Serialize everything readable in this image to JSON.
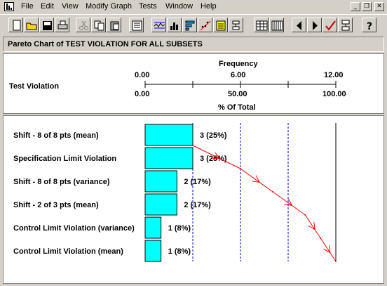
{
  "menu": {
    "items": [
      "File",
      "Edit",
      "View",
      "Modify Graph",
      "Tests",
      "Window",
      "Help"
    ],
    "underline": [
      "F",
      "E",
      "V",
      "M",
      "T",
      "W",
      "H"
    ]
  },
  "window_buttons": [
    "_",
    "❐",
    "✕"
  ],
  "toolbar_icons": [
    "new-file-icon",
    "open-folder-icon",
    "save-disk-icon",
    "print-icon",
    "cut-icon",
    "copy-icon",
    "paste-icon",
    "report-icon",
    "control-chart-icon",
    "histogram-icon",
    "pareto-icon",
    "scatter-icon",
    "capability-icon",
    "runs-icon",
    "spreadsheet-icon",
    "data-table-icon",
    "arrow-left-icon",
    "arrow-right-icon",
    "checkmark-icon",
    "flowchart-icon",
    "help-question-icon"
  ],
  "chart_title": "Pareto Chart of TEST VIOLATION FOR ALL SUBSETS",
  "header": {
    "category_label": "Test Violation",
    "frequency_label": "Frequency",
    "percent_label": "% Of Total",
    "frequency_ticks": [
      "0.00",
      "6.00",
      "12.00"
    ],
    "percent_ticks": [
      "0.00",
      "50.00",
      "100.00"
    ]
  },
  "colors": {
    "bar": "#00ffff",
    "cumulative_line": "#ff0000",
    "gridline": "#0000c0"
  },
  "chart_data": {
    "type": "bar",
    "orientation": "horizontal",
    "categories": [
      "Shift - 8 of 8 pts (mean)",
      "Specification Limit Violation",
      "Shift - 8 of 8 pts (variance)",
      "Shift - 2 of 3 pts (mean)",
      "Control Limit Violation (variance)",
      "Control Limit Violation (mean)"
    ],
    "values": [
      3,
      3,
      2,
      2,
      1,
      1
    ],
    "value_labels": [
      "3 (25%)",
      "3 (25%)",
      "2 (17%)",
      "2 (17%)",
      "1 (8%)",
      "1 (8%)"
    ],
    "cumulative_percent": [
      25,
      50,
      67,
      84,
      92,
      100
    ],
    "xlim": [
      0,
      12
    ],
    "percent_lim": [
      0,
      100
    ],
    "grid": "dashed vertical lines at 3, 6, 9; solid line at 12"
  }
}
